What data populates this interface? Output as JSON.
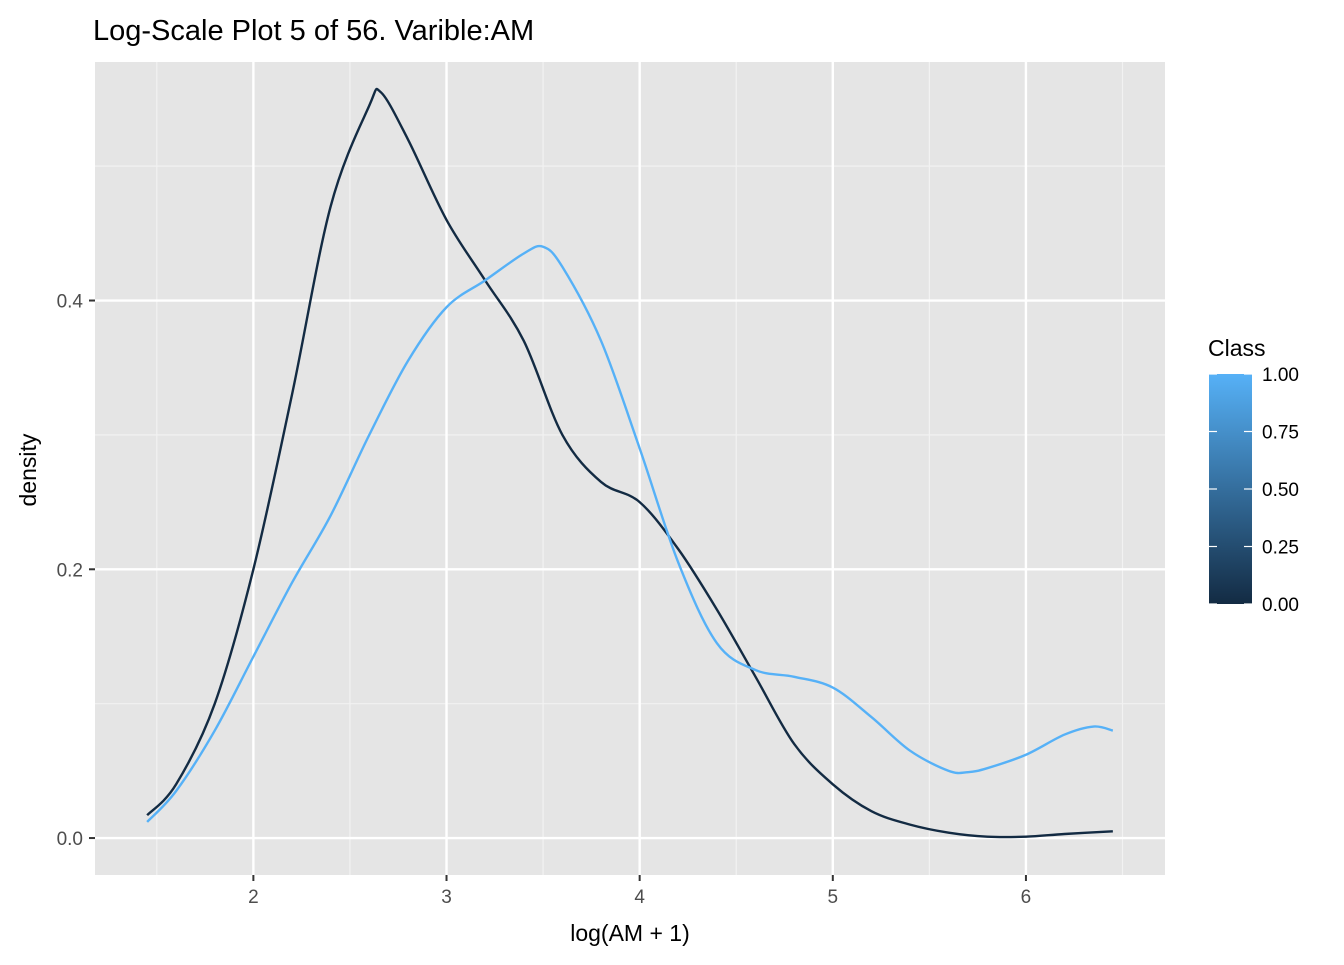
{
  "chart_data": {
    "type": "line",
    "title": "Log-Scale Plot 5 of 56. Varible:AM",
    "xlabel": "log(AM + 1)",
    "ylabel": "density",
    "xlim": [
      1.18,
      6.72
    ],
    "ylim": [
      -0.0275,
      0.5775
    ],
    "x_ticks": [
      2,
      3,
      4,
      5,
      6
    ],
    "y_ticks": [
      0.0,
      0.2,
      0.4
    ],
    "x_tick_labels": [
      "2",
      "3",
      "4",
      "5",
      "6"
    ],
    "y_tick_labels": [
      "0.0",
      "0.2",
      "0.4"
    ],
    "grid": true,
    "legend": {
      "title": "Class",
      "type": "colorbar",
      "position": "right",
      "labels": [
        "1.00",
        "0.75",
        "0.50",
        "0.25",
        "0.00"
      ],
      "values": [
        1.0,
        0.75,
        0.5,
        0.25,
        0.0
      ],
      "low_color": "#132B43",
      "high_color": "#56B1F7"
    },
    "series": [
      {
        "class_value": 0,
        "color": "#132B43",
        "x": [
          1.45,
          1.6,
          1.8,
          2.0,
          2.2,
          2.4,
          2.6,
          2.66,
          2.8,
          3.0,
          3.2,
          3.4,
          3.6,
          3.8,
          4.0,
          4.2,
          4.4,
          4.6,
          4.8,
          5.0,
          5.2,
          5.4,
          5.6,
          5.8,
          6.0,
          6.2,
          6.45
        ],
        "y": [
          0.017,
          0.04,
          0.1,
          0.2,
          0.33,
          0.47,
          0.545,
          0.555,
          0.52,
          0.46,
          0.415,
          0.37,
          0.3,
          0.265,
          0.25,
          0.215,
          0.17,
          0.12,
          0.07,
          0.04,
          0.02,
          0.01,
          0.004,
          0.001,
          0.001,
          0.003,
          0.005
        ]
      },
      {
        "class_value": 1,
        "color": "#56B1F7",
        "x": [
          1.45,
          1.6,
          1.8,
          2.0,
          2.2,
          2.4,
          2.6,
          2.8,
          3.0,
          3.2,
          3.4,
          3.5,
          3.6,
          3.8,
          4.0,
          4.2,
          4.4,
          4.6,
          4.8,
          5.0,
          5.2,
          5.4,
          5.6,
          5.7,
          5.8,
          6.0,
          6.2,
          6.35,
          6.45
        ],
        "y": [
          0.012,
          0.035,
          0.08,
          0.135,
          0.19,
          0.24,
          0.3,
          0.355,
          0.395,
          0.415,
          0.435,
          0.44,
          0.425,
          0.37,
          0.29,
          0.205,
          0.145,
          0.125,
          0.12,
          0.112,
          0.09,
          0.065,
          0.05,
          0.049,
          0.052,
          0.062,
          0.077,
          0.083,
          0.08
        ]
      }
    ]
  }
}
